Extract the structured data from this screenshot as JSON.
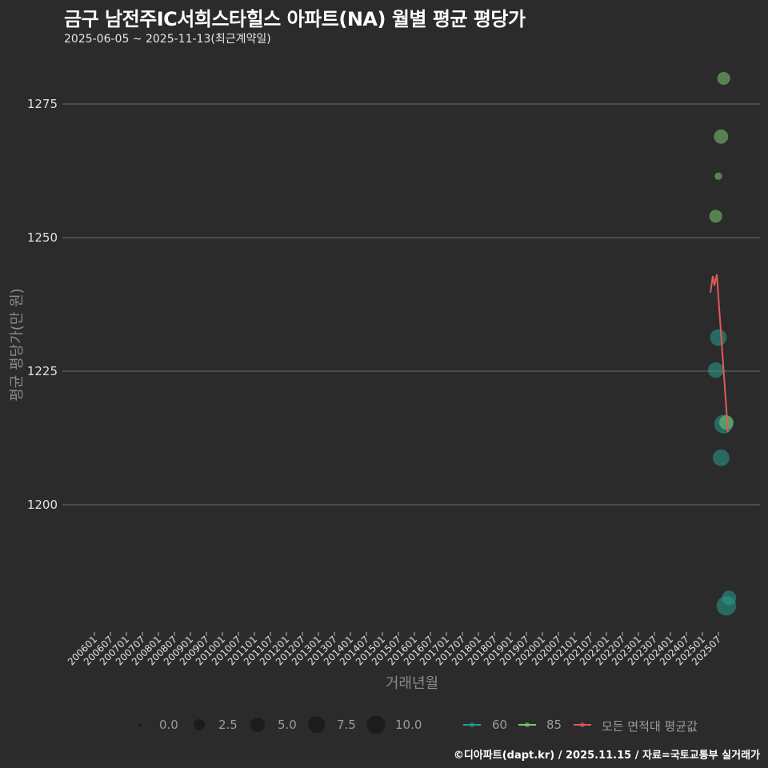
{
  "header": {
    "title": "금구 남전주IC서희스타힐스 아파트(NA) 월별 평균 평당가",
    "subtitle": "2025-06-05 ~ 2025-11-13(최근계약일)"
  },
  "footer": {
    "credit": "©디아파트(dapt.kr) / 2025.11.15 / 자료=국토교통부 실거래가"
  },
  "axes": {
    "xlabel": "거래년월",
    "ylabel": "평균 평당가(만 원)",
    "yticks": [
      "1275",
      "1250",
      "1225",
      "1200"
    ],
    "xticks": [
      "200601",
      "200607",
      "200701",
      "200707",
      "200801",
      "200807",
      "200901",
      "200907",
      "201001",
      "201007",
      "201101",
      "201107",
      "201201",
      "201207",
      "201301",
      "201307",
      "201401",
      "201407",
      "201501",
      "201507",
      "201601",
      "201607",
      "201701",
      "201707",
      "201801",
      "201807",
      "201901",
      "201907",
      "202001",
      "202007",
      "202101",
      "202107",
      "202201",
      "202207",
      "202301",
      "202307",
      "202401",
      "202407",
      "202501",
      "202507"
    ]
  },
  "legend": {
    "size_labels": [
      "0.0",
      "2.5",
      "5.0",
      "7.5",
      "10.0"
    ],
    "series_labels": [
      "60",
      "85",
      "모든 면적대 평균값"
    ]
  },
  "colors": {
    "s60": "#2a9d8f",
    "s85": "#7bc96f",
    "avg": "#e05a5a",
    "grid": "#6e6e6e",
    "bg": "#2b2b2b"
  },
  "chart_data": {
    "type": "scatter",
    "title": "금구 남전주IC서희스타힐스 아파트(NA) 월별 평균 평당가",
    "subtitle": "2025-06-05 ~ 2025-11-13(최근계약일)",
    "xlabel": "거래년월",
    "ylabel": "평균 평당가(만 원)",
    "ylim": [
      1175,
      1285
    ],
    "yticks": [
      1200,
      1225,
      1250,
      1275
    ],
    "grid": true,
    "legend_position": "bottom",
    "series": [
      {
        "name": "60",
        "kind": "points",
        "color": "#2a9d8f",
        "points": [
          {
            "x": "202506",
            "y": 1225.2,
            "size": 5
          },
          {
            "x": "202507",
            "y": 1231.3,
            "size": 6
          },
          {
            "x": "202508",
            "y": 1208.8,
            "size": 6
          },
          {
            "x": "202509",
            "y": 1215.1,
            "size": 8
          },
          {
            "x": "202510",
            "y": 1181.1,
            "size": 9
          },
          {
            "x": "202511",
            "y": 1182.6,
            "size": 4
          }
        ]
      },
      {
        "name": "85",
        "kind": "points",
        "color": "#7bc96f",
        "points": [
          {
            "x": "202506",
            "y": 1254.0,
            "size": 3
          },
          {
            "x": "202507",
            "y": 1261.5,
            "size": 0.5
          },
          {
            "x": "202508",
            "y": 1268.9,
            "size": 4
          },
          {
            "x": "202509",
            "y": 1279.8,
            "size": 3
          },
          {
            "x": "202510",
            "y": 1215.4,
            "size": 4
          }
        ]
      },
      {
        "name": "모든 면적대 평균값",
        "kind": "line",
        "color": "#e05a5a",
        "points": [
          {
            "x": "202504",
            "y": 1239.7
          },
          {
            "x": "202505",
            "y": 1242.8
          },
          {
            "x": "202505",
            "y": 1241.0
          },
          {
            "x": "202506",
            "y": 1243.1
          },
          {
            "x": "202510",
            "y": 1213.6
          }
        ]
      }
    ]
  }
}
